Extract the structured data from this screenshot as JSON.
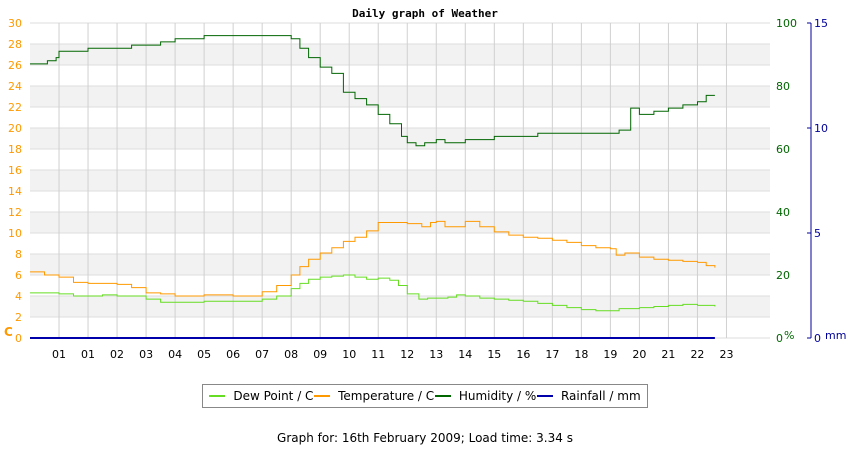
{
  "chart_data": {
    "type": "line",
    "title": "Daily graph of Weather",
    "left_axis": {
      "unit_label": "C",
      "ticks": [
        "0",
        "2",
        "4",
        "6",
        "8",
        "10",
        "12",
        "14",
        "16",
        "18",
        "20",
        "22",
        "24",
        "26",
        "28",
        "30"
      ],
      "range": [
        0,
        30
      ],
      "color": "#ff9900"
    },
    "humidity_axis": {
      "unit_label": "%",
      "ticks": [
        "0",
        "20",
        "40",
        "60",
        "80",
        "100"
      ],
      "range": [
        0,
        100
      ],
      "color": "#006600"
    },
    "rain_axis": {
      "unit_label": "mm",
      "ticks": [
        "0",
        "5",
        "10",
        "15"
      ],
      "range": [
        0,
        15
      ],
      "color": "#000099"
    },
    "x_ticks": [
      "01",
      "01",
      "02",
      "03",
      "04",
      "05",
      "06",
      "07",
      "08",
      "09",
      "10",
      "11",
      "12",
      "13",
      "14",
      "15",
      "16",
      "17",
      "18",
      "19",
      "20",
      "21",
      "22",
      "23"
    ],
    "x_range": [
      0,
      25.5
    ],
    "series": [
      {
        "name": "Dew Point / C",
        "color": "#66dd22",
        "axis": "left",
        "x": [
          0,
          0.5,
          1,
          1.5,
          2,
          2.5,
          3,
          3.5,
          4,
          4.5,
          5,
          5.5,
          6,
          6.5,
          7,
          7.5,
          8,
          8.5,
          9,
          9.3,
          9.6,
          10,
          10.4,
          10.8,
          11.2,
          11.6,
          12,
          12.4,
          12.7,
          13,
          13.4,
          13.7,
          14,
          14.4,
          14.7,
          15,
          15.5,
          16,
          16.5,
          17,
          17.5,
          18,
          18.5,
          19,
          19.5,
          20,
          20.3,
          20.7,
          21,
          21.5,
          22,
          22.5,
          23,
          23.6
        ],
        "values": [
          4.3,
          4.3,
          4.2,
          4.0,
          4.0,
          4.1,
          4.0,
          4.0,
          3.7,
          3.4,
          3.4,
          3.4,
          3.5,
          3.5,
          3.5,
          3.5,
          3.7,
          4.0,
          4.7,
          5.2,
          5.6,
          5.8,
          5.9,
          6.0,
          5.8,
          5.6,
          5.7,
          5.5,
          5.0,
          4.2,
          3.7,
          3.8,
          3.8,
          3.9,
          4.1,
          4.0,
          3.8,
          3.7,
          3.6,
          3.5,
          3.3,
          3.1,
          2.9,
          2.7,
          2.6,
          2.6,
          2.8,
          2.8,
          2.9,
          3.0,
          3.1,
          3.2,
          3.1,
          3.0
        ]
      },
      {
        "name": "Temperature / C",
        "color": "#ff9900",
        "axis": "left",
        "x": [
          0,
          0.5,
          1,
          1.5,
          2,
          2.5,
          3,
          3.5,
          4,
          4.5,
          5,
          5.5,
          6,
          6.5,
          7,
          7.5,
          8,
          8.5,
          9,
          9.3,
          9.6,
          10,
          10.4,
          10.8,
          11.2,
          11.6,
          12,
          12.2,
          12.5,
          13,
          13.5,
          13.8,
          14,
          14.3,
          14.6,
          15,
          15.5,
          16,
          16.5,
          17,
          17.5,
          18,
          18.5,
          19,
          19.5,
          20,
          20.2,
          20.5,
          21,
          21.5,
          22,
          22.5,
          23,
          23.3,
          23.6
        ],
        "values": [
          6.3,
          6.0,
          5.8,
          5.3,
          5.2,
          5.2,
          5.1,
          4.8,
          4.3,
          4.2,
          4.0,
          4.0,
          4.1,
          4.1,
          4.0,
          4.0,
          4.4,
          5.0,
          6.0,
          6.8,
          7.5,
          8.1,
          8.6,
          9.2,
          9.6,
          10.2,
          11.0,
          11.0,
          11.0,
          10.9,
          10.6,
          11.0,
          11.1,
          10.6,
          10.6,
          11.1,
          10.6,
          10.1,
          9.8,
          9.6,
          9.5,
          9.3,
          9.1,
          8.8,
          8.6,
          8.5,
          7.9,
          8.1,
          7.7,
          7.5,
          7.4,
          7.3,
          7.2,
          6.9,
          6.7
        ]
      },
      {
        "name": "Humidity / %",
        "color": "#006600",
        "axis": "humidity",
        "x": [
          0,
          0.3,
          0.6,
          0.9,
          1,
          1.5,
          2,
          2.5,
          3,
          3.5,
          4,
          4.5,
          5,
          5.5,
          6,
          6.5,
          7,
          7.5,
          8,
          8.5,
          9,
          9.3,
          9.6,
          10,
          10.4,
          10.8,
          11.2,
          11.6,
          12,
          12.4,
          12.8,
          13,
          13.3,
          13.6,
          14,
          14.3,
          14.6,
          15,
          15.5,
          16,
          16.5,
          17,
          17.5,
          18,
          18.5,
          19,
          19.5,
          20,
          20.3,
          20.5,
          20.7,
          21,
          21.5,
          22,
          22.5,
          23,
          23.3,
          23.6
        ],
        "values": [
          87,
          87,
          88,
          89,
          91,
          91,
          92,
          92,
          92,
          93,
          93,
          94,
          95,
          95,
          96,
          96,
          96,
          96,
          96,
          96,
          95,
          92,
          89,
          86,
          84,
          78,
          76,
          74,
          71,
          68,
          64,
          62,
          61,
          62,
          63,
          62,
          62,
          63,
          63,
          64,
          64,
          64,
          65,
          65,
          65,
          65,
          65,
          65,
          66,
          66,
          73,
          71,
          72,
          73,
          74,
          75,
          77,
          77
        ]
      },
      {
        "name": "Rainfall / mm",
        "color": "#0000aa",
        "axis": "rain",
        "x": [
          0,
          23.6
        ],
        "values": [
          0,
          0
        ]
      }
    ],
    "grid": true
  },
  "legend": {
    "dew_label": "Dew Point / C",
    "temp_label": "Temperature / C",
    "hum_label": "Humidity / %",
    "rain_label": "Rainfall / mm",
    "dew_color": "#66dd22",
    "temp_color": "#ff9900",
    "hum_color": "#006600",
    "rain_color": "#0000aa"
  },
  "footer": {
    "text": "Graph for: 16th February 2009; Load time: 3.34 s"
  }
}
